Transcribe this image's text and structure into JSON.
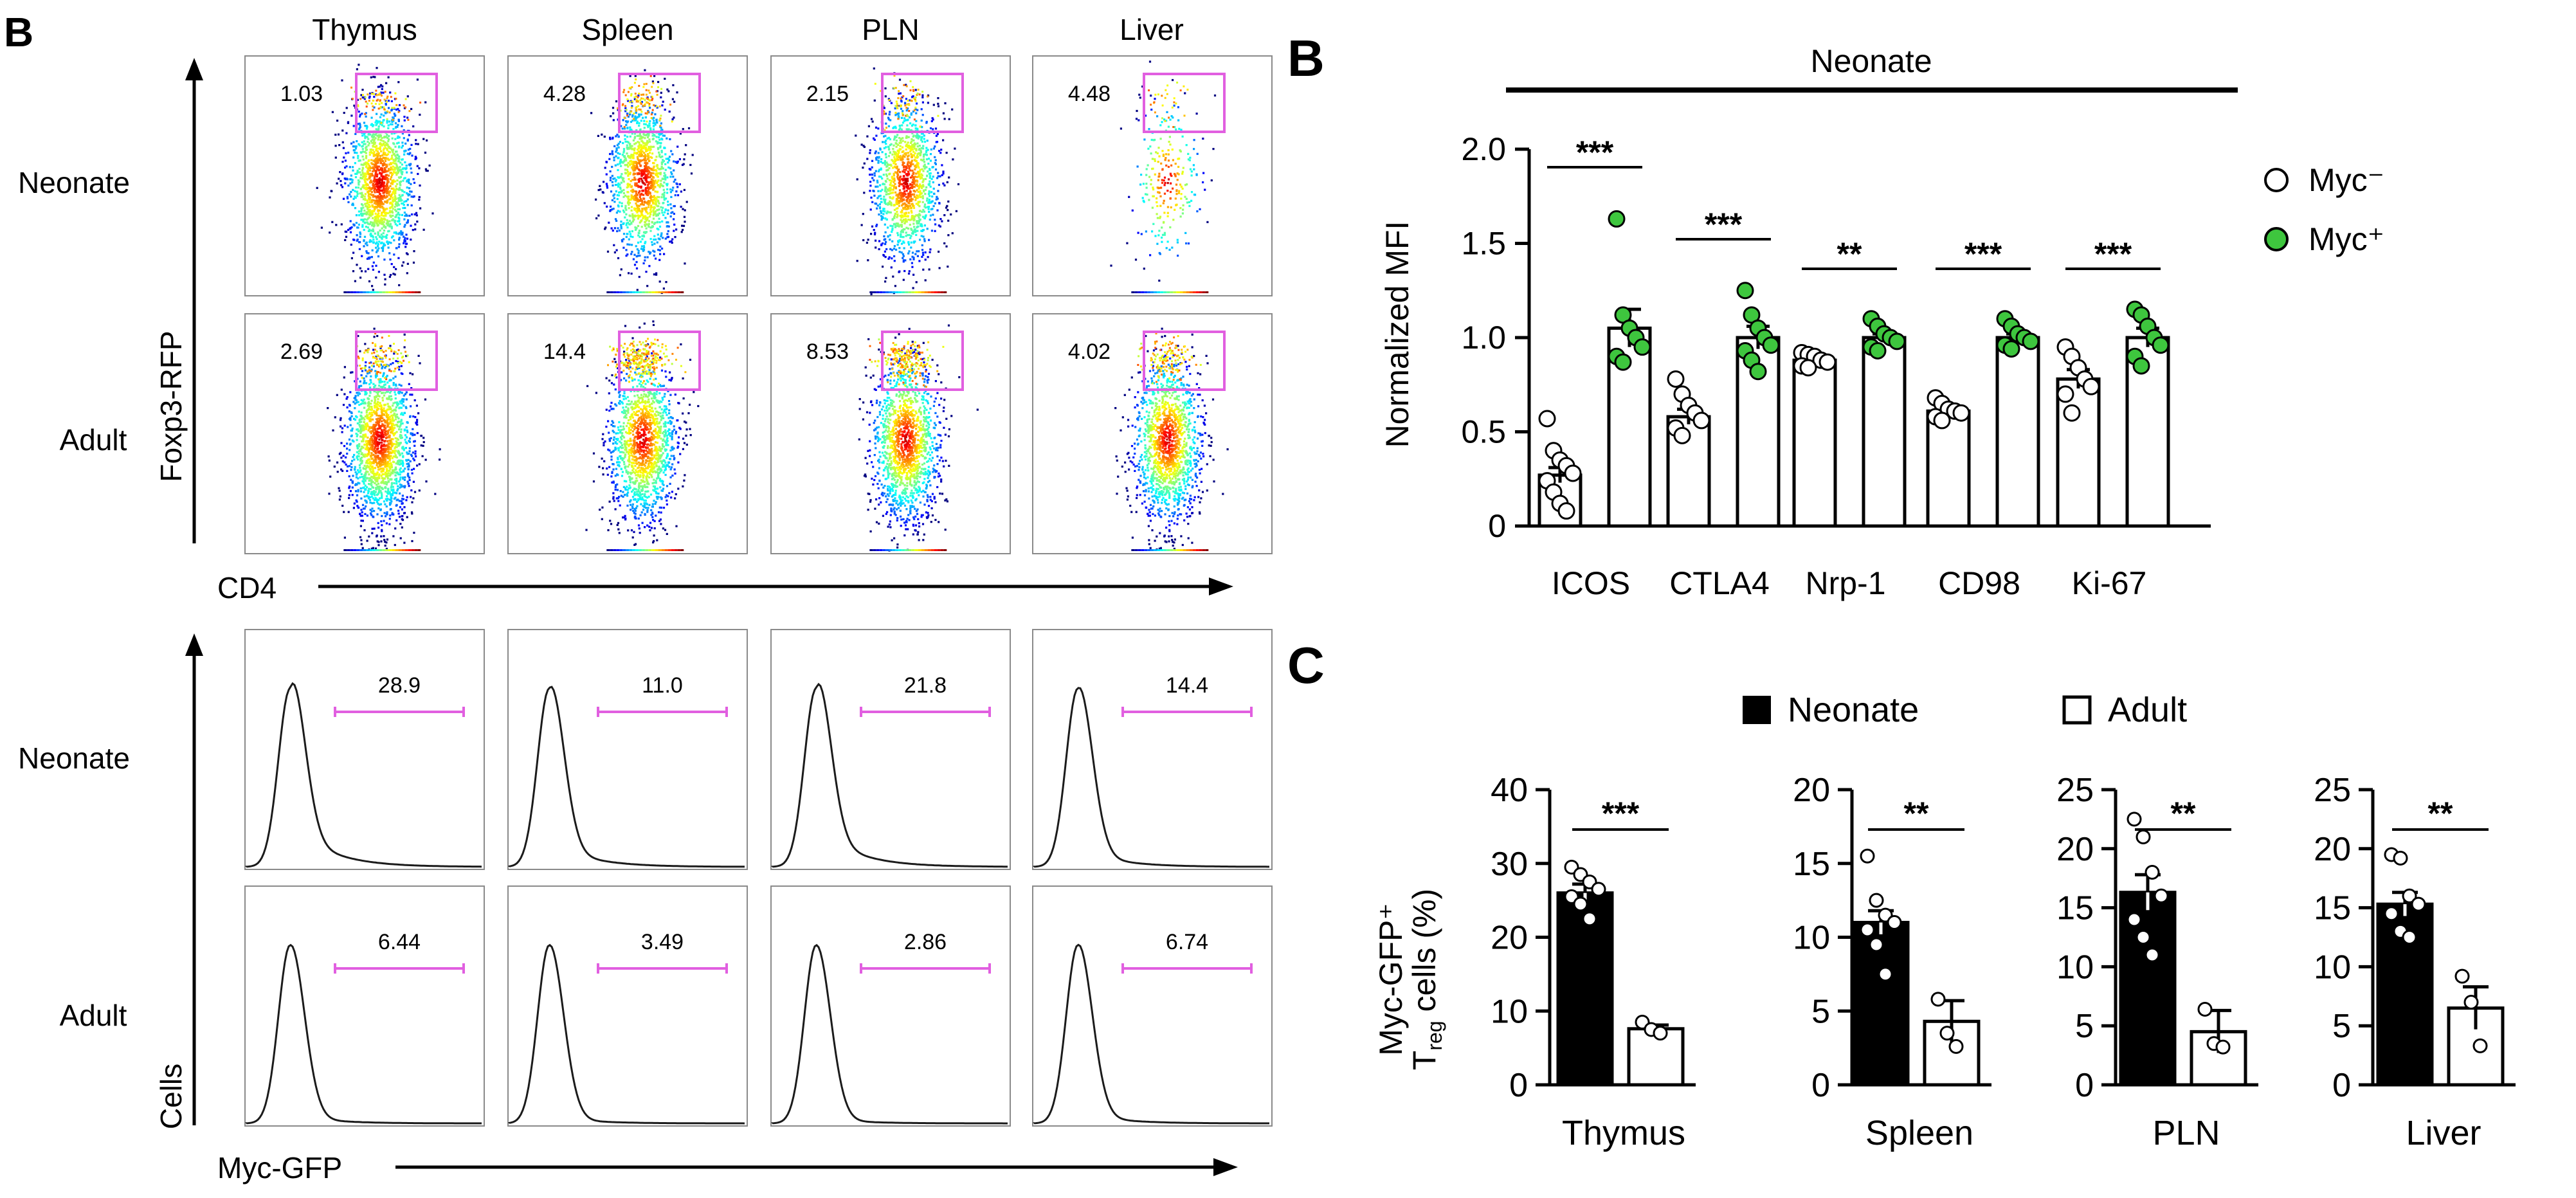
{
  "figure": {
    "flow_panel_letter": "B",
    "bar_panel_letter": "B",
    "c_panel_letter": "C"
  },
  "flow_panel": {
    "tissues": [
      "Thymus",
      "Spleen",
      "PLN",
      "Liver"
    ],
    "row_labels": [
      "Neonate",
      "Adult"
    ],
    "dot_y_axis_label": "Foxp3-RFP",
    "dot_x_axis_label": "CD4",
    "dot_gate_values": [
      [
        "1.03",
        "4.28",
        "2.15",
        "4.48"
      ],
      [
        "2.69",
        "14.4",
        "8.53",
        "4.02"
      ]
    ],
    "hist_y_axis_label": "Cells",
    "hist_x_axis_label": "Myc-GFP",
    "hist_gate_values": [
      [
        "28.9",
        "11.0",
        "21.8",
        "14.4"
      ],
      [
        "6.44",
        "3.49",
        "2.86",
        "6.74"
      ]
    ]
  },
  "chart_data": [
    {
      "type": "bar",
      "panel": "B",
      "group_label": "Neonate",
      "ylabel": "Normalized MFI",
      "ylim": [
        0,
        2.0
      ],
      "yticks": [
        "0",
        "0.5",
        "1.0",
        "1.5",
        "2.0"
      ],
      "categories": [
        "ICOS",
        "CTLA4",
        "Nrp-1",
        "CD98",
        "Ki-67"
      ],
      "series": [
        {
          "name": "Myc⁻",
          "fill": "#ffffff",
          "marker": "open-circle",
          "values": [
            0.27,
            0.58,
            0.88,
            0.61,
            0.78
          ],
          "sem": [
            0.04,
            0.04,
            0.02,
            0.02,
            0.05
          ],
          "points": [
            [
              0.57,
              0.4,
              0.35,
              0.32,
              0.28,
              0.24,
              0.18,
              0.12,
              0.08
            ],
            [
              0.78,
              0.7,
              0.64,
              0.6,
              0.56,
              0.52,
              0.48
            ],
            [
              0.92,
              0.91,
              0.9,
              0.88,
              0.87,
              0.85,
              0.84
            ],
            [
              0.68,
              0.65,
              0.62,
              0.61,
              0.6,
              0.58,
              0.56
            ],
            [
              0.95,
              0.9,
              0.84,
              0.78,
              0.74,
              0.7,
              0.6
            ]
          ]
        },
        {
          "name": "Myc⁺",
          "fill": "#3ec63e",
          "marker": "filled-circle",
          "values": [
            1.05,
            1.0,
            1.0,
            1.0,
            1.0
          ],
          "sem": [
            0.1,
            0.06,
            0.02,
            0.02,
            0.05
          ],
          "points": [
            [
              1.63,
              1.12,
              1.05,
              1.0,
              0.95,
              0.9,
              0.87
            ],
            [
              1.25,
              1.12,
              1.05,
              1.0,
              0.96,
              0.93,
              0.88,
              0.82
            ],
            [
              1.1,
              1.06,
              1.02,
              1.0,
              0.98,
              0.95,
              0.93
            ],
            [
              1.1,
              1.06,
              1.02,
              1.0,
              0.98,
              0.96,
              0.94
            ],
            [
              1.15,
              1.12,
              1.06,
              1.0,
              0.96,
              0.9,
              0.85
            ]
          ]
        }
      ],
      "significance": [
        "***",
        "***",
        "**",
        "***",
        "***"
      ],
      "legend_position": "right"
    },
    {
      "type": "bar",
      "panel": "C",
      "ylabel": "Myc-GFP⁺ Tₙₑᵍ cells (%)",
      "ylabel_line1": "Myc-GFP⁺",
      "ylabel_line2_t": "T",
      "ylabel_line2_sub": "reg",
      "ylabel_line2_rest": " cells (%)",
      "legend": [
        {
          "name": "Neonate",
          "fill": "#000000"
        },
        {
          "name": "Adult",
          "fill": "#ffffff"
        }
      ],
      "legend_position": "top",
      "subplots": [
        {
          "category": "Thymus",
          "ylim": [
            0,
            40
          ],
          "yticks": [
            "0",
            "10",
            "20",
            "30",
            "40"
          ],
          "values": [
            26,
            7.6
          ],
          "sem": [
            1.2,
            0.5
          ],
          "points": [
            [
              29.5,
              28.5,
              27.5,
              26.5,
              25.5,
              24.5,
              22.5
            ],
            [
              8.5,
              7.5,
              7
            ]
          ],
          "significance": "***"
        },
        {
          "category": "Spleen",
          "ylim": [
            0,
            20
          ],
          "yticks": [
            "0",
            "5",
            "10",
            "15",
            "20"
          ],
          "values": [
            11,
            4.3
          ],
          "sem": [
            0.8,
            1.4
          ],
          "points": [
            [
              15.5,
              12.5,
              11.5,
              11,
              10.5,
              9.5,
              7.5
            ],
            [
              5.8,
              3.5,
              2.6
            ]
          ],
          "significance": "**"
        },
        {
          "category": "PLN",
          "ylim": [
            0,
            25
          ],
          "yticks": [
            "0",
            "5",
            "10",
            "15",
            "20",
            "25"
          ],
          "values": [
            16.3,
            4.5
          ],
          "sem": [
            1.5,
            1.8
          ],
          "points": [
            [
              22.5,
              21,
              18,
              16,
              14,
              12.5,
              11
            ],
            [
              6.4,
              3.5,
              3.2
            ]
          ],
          "significance": "**"
        },
        {
          "category": "Liver",
          "ylim": [
            0,
            25
          ],
          "yticks": [
            "0",
            "5",
            "10",
            "15",
            "20",
            "25"
          ],
          "values": [
            15.3,
            6.5
          ],
          "sem": [
            1.0,
            1.8
          ],
          "points": [
            [
              19.5,
              19.2,
              16,
              15.3,
              14.5,
              13,
              12.5
            ],
            [
              9.2,
              7,
              3.3
            ]
          ],
          "significance": "**"
        }
      ]
    }
  ]
}
